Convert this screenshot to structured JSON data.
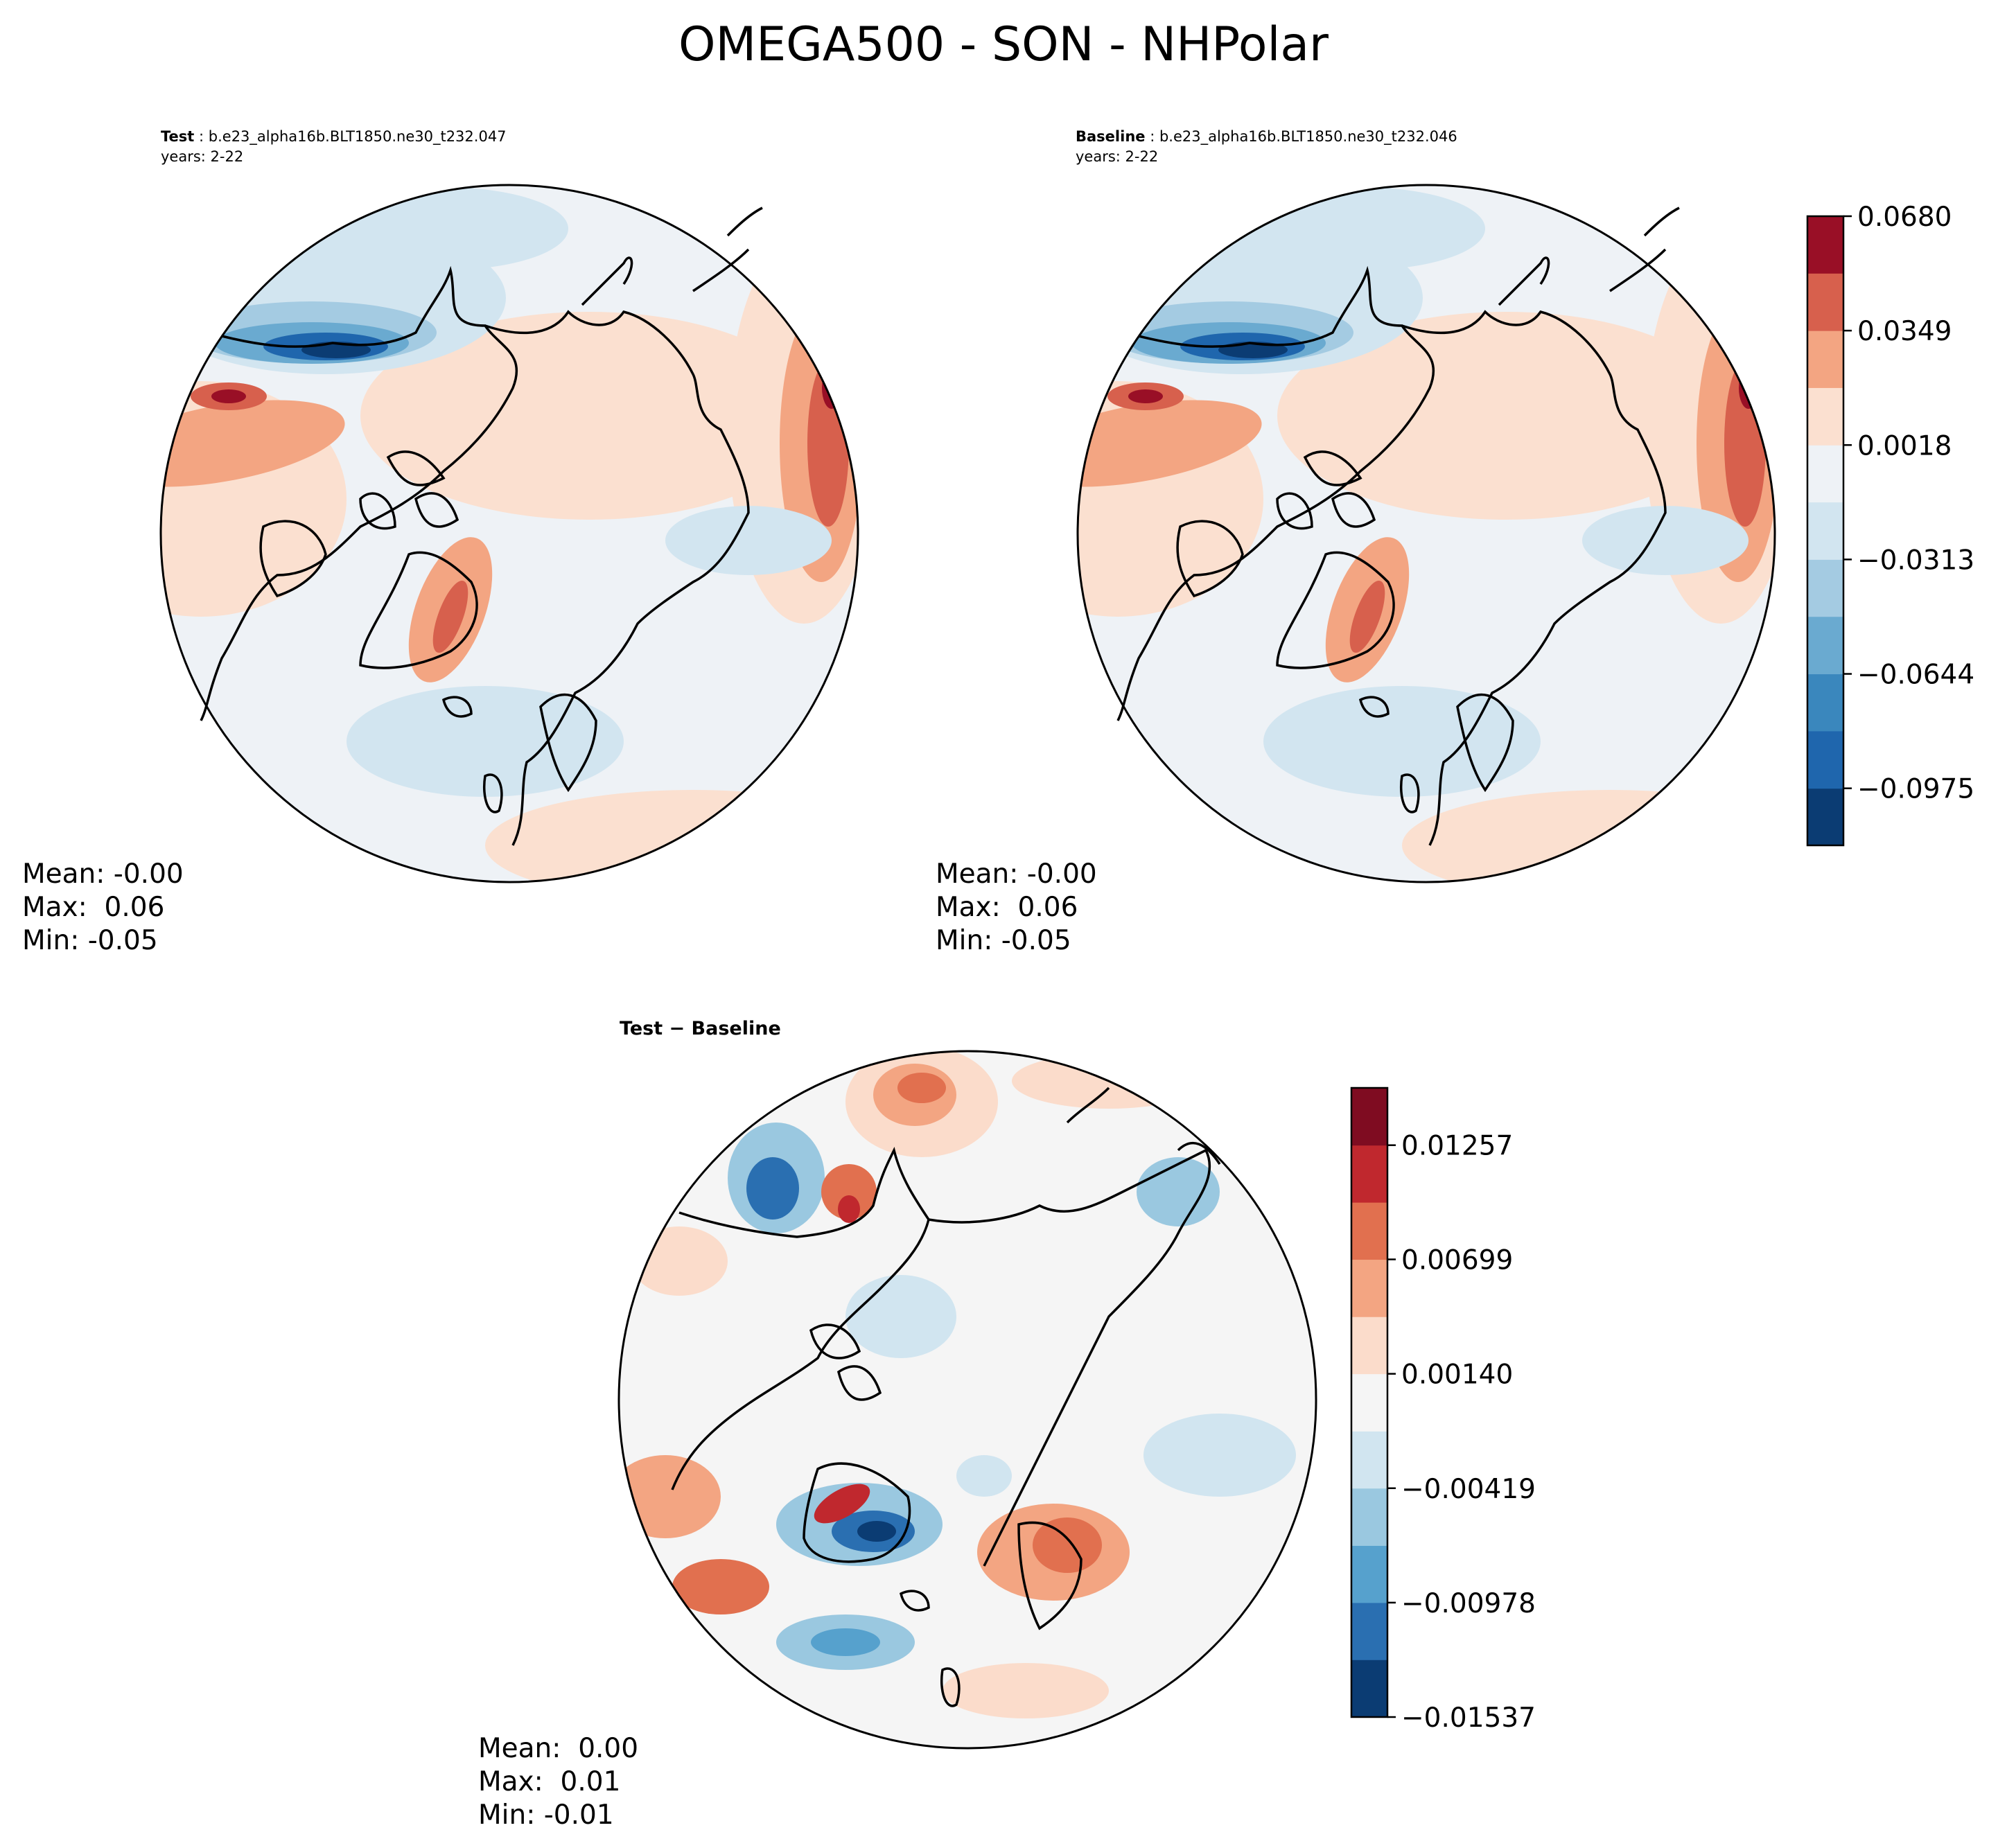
{
  "figure": {
    "title": "OMEGA500 - SON - NHPolar"
  },
  "panels": [
    {
      "id": "test",
      "label": "Test",
      "case": "b.e23_alpha16b.BLT1850.ne30_t232.047",
      "years": "years: 2-22",
      "stats": {
        "mean": "Mean: -0.00",
        "max": "Max:  0.06",
        "min": "Min: -0.05"
      }
    },
    {
      "id": "baseline",
      "label": "Baseline",
      "case": "b.e23_alpha16b.BLT1850.ne30_t232.046",
      "years": "years: 2-22",
      "stats": {
        "mean": "Mean: -0.00",
        "max": "Max:  0.06",
        "min": "Min: -0.05"
      }
    },
    {
      "id": "diff",
      "label": "Test − Baseline",
      "stats": {
        "mean": "Mean:  0.00",
        "max": "Max:  0.01",
        "min": "Min: -0.01"
      }
    }
  ],
  "chart_data": [
    {
      "type": "heatmap",
      "title": "Test",
      "projection": "north-polar-stereographic",
      "variable": "OMEGA500",
      "season": "SON",
      "colorbar": "shared-right",
      "stats": {
        "mean": -0.0,
        "max": 0.06,
        "min": -0.05
      }
    },
    {
      "type": "heatmap",
      "title": "Baseline",
      "projection": "north-polar-stereographic",
      "variable": "OMEGA500",
      "season": "SON",
      "stats": {
        "mean": -0.0,
        "max": 0.06,
        "min": -0.05
      },
      "colorbar": {
        "levels": [
          -0.114,
          -0.0975,
          -0.0809,
          -0.0644,
          -0.0478,
          -0.0313,
          -0.0147,
          0.0018,
          0.0184,
          0.0349,
          0.0515,
          0.068
        ],
        "ticks": [
          "0.0680",
          "0.0349",
          "0.0018",
          "−0.0313",
          "−0.0644",
          "−0.0975"
        ],
        "tick_values": [
          0.068,
          0.0349,
          0.0018,
          -0.0313,
          -0.0644,
          -0.0975
        ],
        "colors": [
          "#0b3c73",
          "#1f66ad",
          "#3a87bd",
          "#6aaad0",
          "#a4cbe2",
          "#d2e5f0",
          "#eef2f6",
          "#fbe0d0",
          "#f3a582",
          "#d7604d",
          "#990f26"
        ]
      }
    },
    {
      "type": "heatmap",
      "title": "Test − Baseline",
      "projection": "north-polar-stereographic",
      "stats": {
        "mean": 0.0,
        "max": 0.01,
        "min": -0.01
      },
      "colorbar": {
        "levels": [
          -0.01537,
          -0.01257,
          -0.00978,
          -0.00699,
          -0.00419,
          -0.0014,
          0.0014,
          0.00419,
          0.00699,
          0.00978,
          0.01257,
          0.01537
        ],
        "ticks": [
          "0.01257",
          "0.00699",
          "0.00140",
          "−0.00419",
          "−0.00978",
          "−0.01537"
        ],
        "tick_values": [
          0.01257,
          0.00699,
          0.0014,
          -0.00419,
          -0.00978,
          -0.01537
        ],
        "colors": [
          "#0b3c73",
          "#2a6fb1",
          "#56a1cd",
          "#9ac8e0",
          "#d1e5f0",
          "#f5f5f5",
          "#fbdccb",
          "#f3a582",
          "#e1704f",
          "#c0282e",
          "#7f0c21"
        ]
      }
    }
  ],
  "colors": {
    "axis": "#000000",
    "land_outline": "#000000",
    "neutral_test": "#eef2f6",
    "neutral_diff": "#f5f5f5"
  }
}
